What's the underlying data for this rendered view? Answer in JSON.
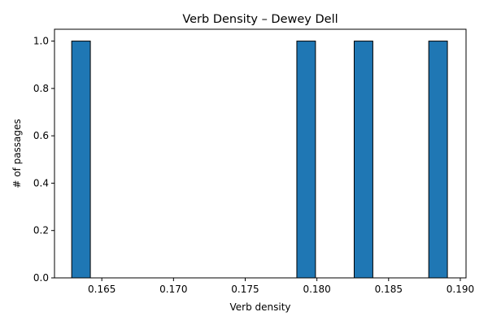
{
  "chart_data": {
    "type": "bar",
    "title": "Verb Density – Dewey Dell",
    "xlabel": "Verb density",
    "ylabel": "# of passages",
    "xlim": [
      0.1617,
      0.1904
    ],
    "ylim": [
      0,
      1.05
    ],
    "xticks": [
      0.165,
      0.17,
      0.175,
      0.18,
      0.185,
      0.19
    ],
    "xtick_labels": [
      "0.165",
      "0.170",
      "0.175",
      "0.180",
      "0.185",
      "0.190"
    ],
    "yticks": [
      0.0,
      0.2,
      0.4,
      0.6,
      0.8,
      1.0
    ],
    "ytick_labels": [
      "0.0",
      "0.2",
      "0.4",
      "0.6",
      "0.8",
      "1.0"
    ],
    "bin_width": 0.0013,
    "bins": [
      {
        "x": 0.1629,
        "value": 1
      },
      {
        "x": 0.1786,
        "value": 1
      },
      {
        "x": 0.1826,
        "value": 1
      },
      {
        "x": 0.1878,
        "value": 1
      }
    ],
    "bar_color": "#1f77b4",
    "edge_color": "#000000",
    "grid": false,
    "legend": "none"
  }
}
